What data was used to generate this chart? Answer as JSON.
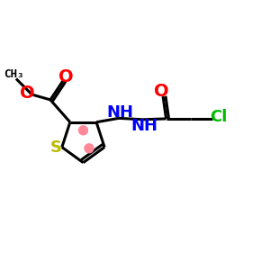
{
  "bg_color": "#ffffff",
  "bond_color": "#000000",
  "sulfur_color": "#bbbb00",
  "oxygen_color": "#ff0000",
  "nitrogen_color": "#0000ff",
  "chlorine_color": "#00bb00",
  "aromatic_dot_color": "#ff8899",
  "line_width": 2.2,
  "figsize": [
    3.0,
    3.0
  ],
  "dpi": 100,
  "xlim": [
    0,
    10
  ],
  "ylim": [
    0,
    10
  ]
}
